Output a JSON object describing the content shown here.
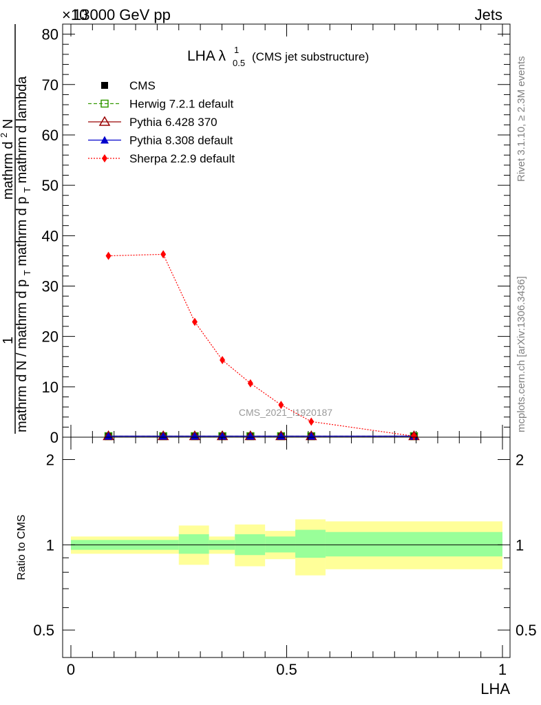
{
  "header": {
    "energy_label": "13000 GeV pp",
    "category_label": "Jets",
    "exponent_label": "×10"
  },
  "main_plot": {
    "title_main": "LHA λ",
    "title_sup": "1",
    "title_sub": "0.5",
    "title_note": "(CMS jet substructure)",
    "y_label_numerator_1": "1",
    "y_label_denominator": "mathrm d N / mathrm d p",
    "y_label_denominator_sub": "T",
    "y_label_numerator_2": "mathrm d",
    "y_label_numerator_2_sup": "2",
    "y_label_numerator_2_rest": "N",
    "y_label_full_top": "mathrm d p",
    "y_label_full_top_sub": "T",
    "y_label_full_top_rest": " mathrm d lambda",
    "y_label_mid": "mathrm d p",
    "y_label_mid_sub": "T",
    "y_label_mid_rest": " mathrm d p",
    "watermark": "CMS_2021_I1920187",
    "y_ticks": [
      "0",
      "10",
      "20",
      "30",
      "40",
      "50",
      "60",
      "70",
      "80"
    ]
  },
  "ratio_plot": {
    "y_label": "Ratio to CMS",
    "y_ticks": [
      "0.5",
      "1",
      "2"
    ]
  },
  "x_axis": {
    "label": "LHA",
    "ticks": [
      "0",
      "0.5",
      "1"
    ]
  },
  "side_text": {
    "rivet": "Rivet 3.1.10, ≥ 2.3M events",
    "mcplots": "mcplots.cern.ch [arXiv:1306.3436]"
  },
  "legend": [
    {
      "name": "CMS",
      "color": "#000000",
      "marker": "square-filled",
      "line": "none"
    },
    {
      "name": "Herwig 7.2.1 default",
      "color": "#339900",
      "marker": "square-open",
      "line": "dashed"
    },
    {
      "name": "Pythia 6.428 370",
      "color": "#990000",
      "marker": "triangle-open",
      "line": "solid"
    },
    {
      "name": "Pythia 8.308 default",
      "color": "#0000cc",
      "marker": "triangle-filled",
      "line": "solid"
    },
    {
      "name": "Sherpa 2.2.9 default",
      "color": "#ff0000",
      "marker": "diamond-filled",
      "line": "dotted"
    }
  ],
  "chart_data": {
    "type": "line",
    "x_label": "LHA",
    "xlim": [
      -0.02,
      1.02
    ],
    "ylim": [
      0,
      82
    ],
    "y_exponent": "×10^?",
    "bin_edges": [
      0.0,
      0.2,
      0.25,
      0.32,
      0.38,
      0.45,
      0.52,
      0.59,
      1.0
    ],
    "points_x": [
      0.087,
      0.214,
      0.287,
      0.351,
      0.416,
      0.487,
      0.557,
      0.795
    ],
    "series": [
      {
        "name": "CMS",
        "values": [
          0.2,
          0.2,
          0.2,
          0.2,
          0.2,
          0.2,
          0.2,
          0.2
        ]
      },
      {
        "name": "Herwig 7.2.1 default",
        "values": [
          0.2,
          0.2,
          0.2,
          0.2,
          0.2,
          0.2,
          0.2,
          0.2
        ]
      },
      {
        "name": "Pythia 6.428 370",
        "values": [
          0.2,
          0.2,
          0.2,
          0.2,
          0.2,
          0.2,
          0.2,
          0.2
        ]
      },
      {
        "name": "Pythia 8.308 default",
        "values": [
          0.2,
          0.2,
          0.2,
          0.2,
          0.2,
          0.2,
          0.2,
          0.2
        ]
      },
      {
        "name": "Sherpa 2.2.9 default",
        "values": [
          36.0,
          36.3,
          22.9,
          15.3,
          10.7,
          6.4,
          3.1,
          0.2
        ]
      }
    ],
    "ratio": {
      "ylabel": "Ratio to CMS",
      "log_scale": true,
      "ylim": [
        0.4,
        2.4
      ],
      "reference": 1.0,
      "bands": [
        {
          "x0": 0.0,
          "x1": 0.25,
          "inner": [
            0.96,
            1.04
          ],
          "outer": [
            0.93,
            1.07
          ]
        },
        {
          "x0": 0.25,
          "x1": 0.32,
          "inner": [
            0.93,
            1.09
          ],
          "outer": [
            0.85,
            1.17
          ]
        },
        {
          "x0": 0.32,
          "x1": 0.38,
          "inner": [
            0.96,
            1.04
          ],
          "outer": [
            0.93,
            1.07
          ]
        },
        {
          "x0": 0.38,
          "x1": 0.45,
          "inner": [
            0.92,
            1.09
          ],
          "outer": [
            0.84,
            1.18
          ]
        },
        {
          "x0": 0.45,
          "x1": 0.52,
          "inner": [
            0.94,
            1.07
          ],
          "outer": [
            0.89,
            1.12
          ]
        },
        {
          "x0": 0.52,
          "x1": 0.59,
          "inner": [
            0.9,
            1.13
          ],
          "outer": [
            0.78,
            1.23
          ]
        },
        {
          "x0": 0.59,
          "x1": 1.0,
          "inner": [
            0.91,
            1.11
          ],
          "outer": [
            0.82,
            1.21
          ]
        }
      ]
    }
  }
}
